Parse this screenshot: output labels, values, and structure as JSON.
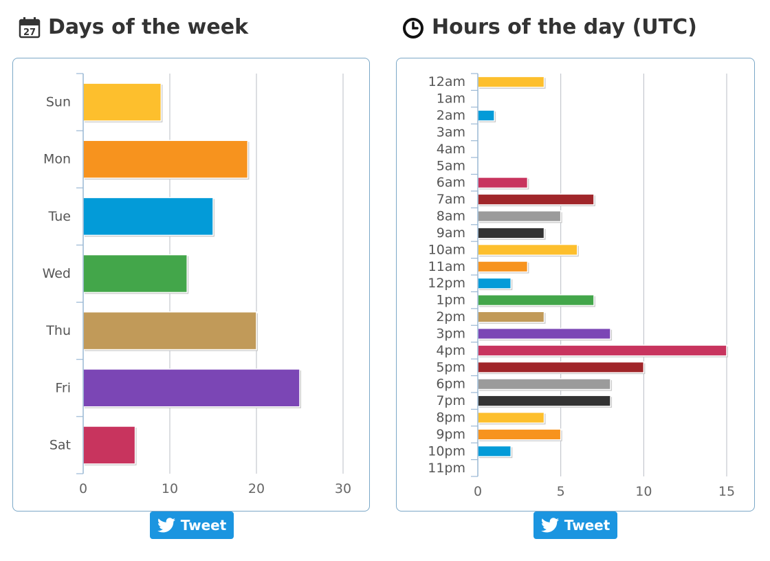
{
  "left": {
    "title": "Days of the week",
    "icon": "calendar-icon",
    "icon_day": "27",
    "tweet_label": "Tweet"
  },
  "right": {
    "title": "Hours of the day (UTC)",
    "icon": "clock-icon",
    "tweet_label": "Tweet"
  },
  "chart_data": [
    {
      "type": "bar",
      "orientation": "horizontal",
      "title": "Days of the week",
      "categories": [
        "Sun",
        "Mon",
        "Tue",
        "Wed",
        "Thu",
        "Fri",
        "Sat"
      ],
      "values": [
        9,
        19,
        15,
        12,
        20,
        25,
        6
      ],
      "colors": [
        "#fdbf2d",
        "#f7931e",
        "#039bd8",
        "#43a64a",
        "#c19a59",
        "#7b46b5",
        "#c8345e"
      ],
      "xlim": [
        0,
        30
      ],
      "xticks": [
        0,
        10,
        20,
        30
      ],
      "grid": true,
      "legend": "none"
    },
    {
      "type": "bar",
      "orientation": "horizontal",
      "title": "Hours of the day (UTC)",
      "categories": [
        "12am",
        "1am",
        "2am",
        "3am",
        "4am",
        "5am",
        "6am",
        "7am",
        "8am",
        "9am",
        "10am",
        "11am",
        "12pm",
        "1pm",
        "2pm",
        "3pm",
        "4pm",
        "5pm",
        "6pm",
        "7pm",
        "8pm",
        "9pm",
        "10pm",
        "11pm"
      ],
      "values": [
        4,
        0,
        1,
        0,
        0,
        0,
        3,
        7,
        5,
        4,
        6,
        3,
        2,
        7,
        4,
        8,
        15,
        10,
        8,
        8,
        4,
        5,
        2,
        0
      ],
      "colors": [
        "#fdbf2d",
        "#f7931e",
        "#039bd8",
        "#43a64a",
        "#c19a59",
        "#7b46b5",
        "#c8345e",
        "#a0262a",
        "#9b9b9b",
        "#333333"
      ],
      "xlim": [
        0,
        15
      ],
      "xticks": [
        0,
        5,
        10,
        15
      ],
      "grid": true,
      "legend": "none"
    }
  ]
}
